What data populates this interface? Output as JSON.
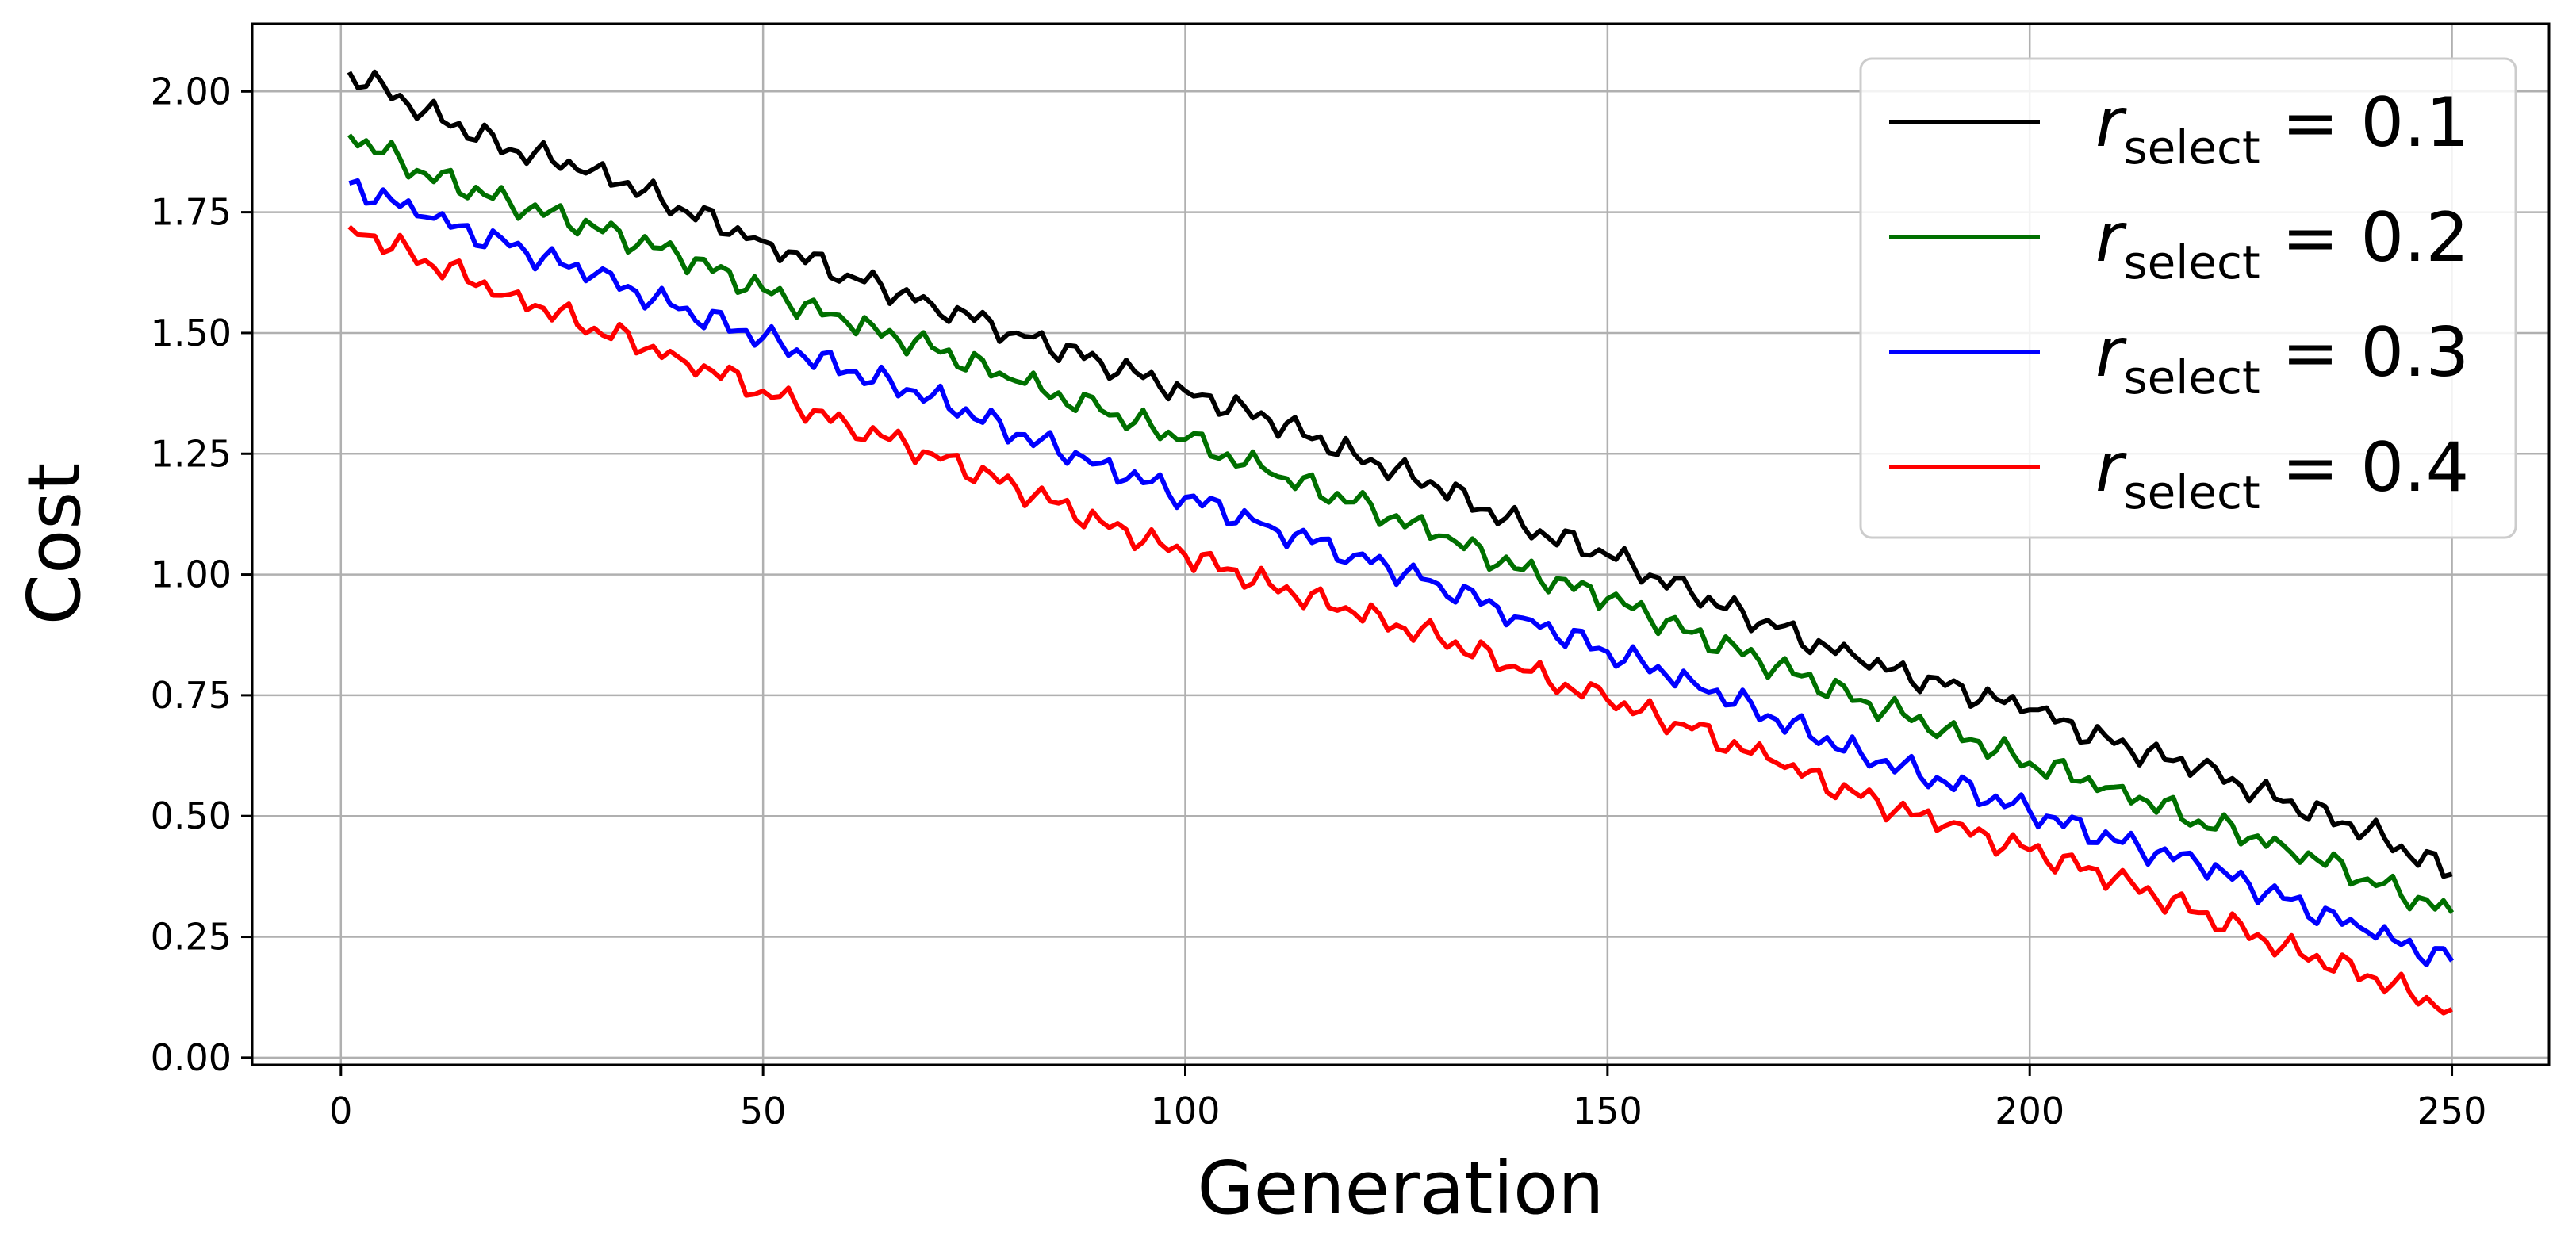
{
  "chart_data": {
    "type": "line",
    "title": "",
    "xlabel": "Generation",
    "ylabel": "Cost",
    "xlim": [
      -10.5,
      261.5
    ],
    "ylim": [
      -0.015,
      2.14
    ],
    "xticks": [
      0,
      50,
      100,
      150,
      200,
      250
    ],
    "xtick_labels": [
      "0",
      "50",
      "100",
      "150",
      "200",
      "250"
    ],
    "yticks": [
      0.0,
      0.25,
      0.5,
      0.75,
      1.0,
      1.25,
      1.5,
      1.75,
      2.0
    ],
    "ytick_labels": [
      "0.00",
      "0.25",
      "0.50",
      "0.75",
      "1.00",
      "1.25",
      "1.50",
      "1.75",
      "2.00"
    ],
    "grid": true,
    "legend_position": "top-right",
    "series": [
      {
        "label_base": "r",
        "label_sub": "select",
        "label_rest": " = 0.1",
        "color": "#000000",
        "x": [
          1,
          10,
          20,
          30,
          40,
          50,
          60,
          70,
          80,
          90,
          100,
          110,
          120,
          130,
          140,
          150,
          160,
          170,
          180,
          190,
          200,
          210,
          220,
          230,
          240,
          250
        ],
        "y": [
          2.04,
          1.96,
          1.88,
          1.84,
          1.76,
          1.69,
          1.62,
          1.56,
          1.5,
          1.44,
          1.38,
          1.32,
          1.25,
          1.18,
          1.1,
          1.04,
          0.96,
          0.89,
          0.82,
          0.77,
          0.72,
          0.65,
          0.6,
          0.53,
          0.47,
          0.38
        ]
      },
      {
        "label_base": "r",
        "label_sub": "select",
        "label_rest": " = 0.2",
        "color": "#007000",
        "x": [
          1,
          10,
          20,
          30,
          40,
          50,
          60,
          70,
          80,
          90,
          100,
          110,
          120,
          130,
          140,
          150,
          160,
          170,
          180,
          190,
          200,
          210,
          220,
          230,
          240,
          250
        ],
        "y": [
          1.91,
          1.83,
          1.77,
          1.72,
          1.66,
          1.59,
          1.52,
          1.47,
          1.4,
          1.34,
          1.28,
          1.21,
          1.15,
          1.08,
          1.01,
          0.95,
          0.88,
          0.81,
          0.74,
          0.68,
          0.61,
          0.56,
          0.49,
          0.44,
          0.37,
          0.3
        ]
      },
      {
        "label_base": "r",
        "label_sub": "select",
        "label_rest": " = 0.3",
        "color": "#0000ff",
        "x": [
          1,
          10,
          20,
          30,
          40,
          50,
          60,
          70,
          80,
          90,
          100,
          110,
          120,
          130,
          140,
          150,
          160,
          170,
          180,
          190,
          200,
          210,
          220,
          230,
          240,
          250
        ],
        "y": [
          1.81,
          1.74,
          1.68,
          1.62,
          1.55,
          1.49,
          1.42,
          1.37,
          1.29,
          1.23,
          1.16,
          1.1,
          1.04,
          0.98,
          0.91,
          0.84,
          0.78,
          0.7,
          0.63,
          0.57,
          0.51,
          0.45,
          0.4,
          0.33,
          0.26,
          0.2
        ]
      },
      {
        "label_base": "r",
        "label_sub": "select",
        "label_rest": " = 0.4",
        "color": "#ff0000",
        "x": [
          1,
          10,
          20,
          30,
          40,
          50,
          60,
          70,
          80,
          90,
          100,
          110,
          120,
          130,
          140,
          150,
          160,
          170,
          180,
          190,
          200,
          210,
          220,
          230,
          240,
          250
        ],
        "y": [
          1.72,
          1.65,
          1.58,
          1.51,
          1.45,
          1.38,
          1.31,
          1.25,
          1.18,
          1.11,
          1.04,
          0.98,
          0.92,
          0.87,
          0.8,
          0.74,
          0.68,
          0.61,
          0.54,
          0.48,
          0.43,
          0.37,
          0.3,
          0.23,
          0.17,
          0.1
        ]
      }
    ]
  }
}
